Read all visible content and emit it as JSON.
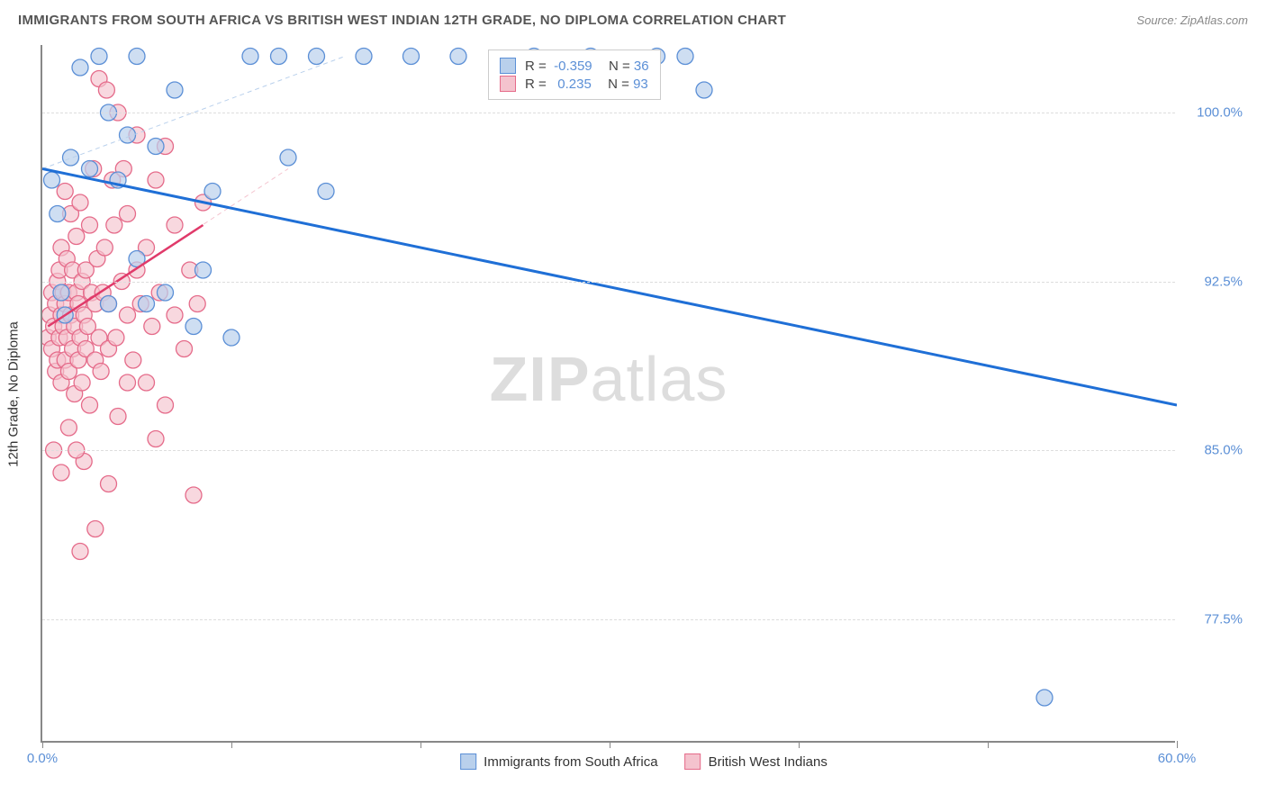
{
  "header": {
    "title": "IMMIGRANTS FROM SOUTH AFRICA VS BRITISH WEST INDIAN 12TH GRADE, NO DIPLOMA CORRELATION CHART",
    "source_label": "Source:",
    "source_name": "ZipAtlas.com"
  },
  "chart": {
    "type": "scatter",
    "ylabel": "12th Grade, No Diploma",
    "xlim": [
      0,
      60
    ],
    "ylim": [
      72,
      103
    ],
    "x_ticks": [
      0,
      10,
      20,
      30,
      40,
      50,
      60
    ],
    "x_tick_labels": {
      "0": "0.0%",
      "60": "60.0%"
    },
    "y_ticks": [
      77.5,
      85.0,
      92.5,
      100.0
    ],
    "y_tick_labels": [
      "77.5%",
      "85.0%",
      "92.5%",
      "100.0%"
    ],
    "grid_color": "#dddddd",
    "axis_color": "#888888",
    "background_color": "#ffffff",
    "tick_label_color": "#5b8fd6",
    "series": [
      {
        "name": "Immigrants from South Africa",
        "marker_fill": "#b9d0ec",
        "marker_stroke": "#5b8fd6",
        "marker_opacity": 0.7,
        "marker_radius": 9,
        "R": "-0.359",
        "N": "36",
        "trend": {
          "x1": 0,
          "y1": 97.5,
          "x2": 60,
          "y2": 87.0,
          "color": "#1f6fd6",
          "width": 3,
          "dash": "none"
        },
        "trend_dashed": {
          "x1": 0,
          "y1": 97.5,
          "x2": 16,
          "y2": 102.5,
          "color": "#b9d0ec",
          "width": 1,
          "dash": "5,4"
        },
        "points": [
          [
            0.5,
            97.0
          ],
          [
            0.8,
            95.5
          ],
          [
            1.0,
            92.0
          ],
          [
            1.2,
            91.0
          ],
          [
            1.5,
            98.0
          ],
          [
            2.0,
            102.0
          ],
          [
            2.5,
            97.5
          ],
          [
            3.0,
            102.5
          ],
          [
            3.5,
            91.5
          ],
          [
            3.5,
            100.0
          ],
          [
            4.0,
            97.0
          ],
          [
            4.5,
            99.0
          ],
          [
            5.0,
            102.5
          ],
          [
            5.0,
            93.5
          ],
          [
            5.5,
            91.5
          ],
          [
            6.0,
            98.5
          ],
          [
            6.5,
            92.0
          ],
          [
            7.0,
            101.0
          ],
          [
            8.0,
            90.5
          ],
          [
            8.5,
            93.0
          ],
          [
            9.0,
            96.5
          ],
          [
            10.0,
            90.0
          ],
          [
            11.0,
            102.5
          ],
          [
            12.5,
            102.5
          ],
          [
            13.0,
            98.0
          ],
          [
            14.5,
            102.5
          ],
          [
            15.0,
            96.5
          ],
          [
            17.0,
            102.5
          ],
          [
            19.5,
            102.5
          ],
          [
            22.0,
            102.5
          ],
          [
            26.0,
            102.5
          ],
          [
            29.0,
            102.5
          ],
          [
            32.5,
            102.5
          ],
          [
            34.0,
            102.5
          ],
          [
            35.0,
            101.0
          ],
          [
            53.0,
            74.0
          ]
        ]
      },
      {
        "name": "British West Indians",
        "marker_fill": "#f4c3ce",
        "marker_stroke": "#e56b8a",
        "marker_opacity": 0.65,
        "marker_radius": 9,
        "R": "0.235",
        "N": "93",
        "trend": {
          "x1": 0.3,
          "y1": 90.5,
          "x2": 8.5,
          "y2": 95.0,
          "color": "#e03a6a",
          "width": 2.5,
          "dash": "none"
        },
        "trend_dashed": {
          "x1": 0.3,
          "y1": 90.5,
          "x2": 13,
          "y2": 97.5,
          "color": "#f4c3ce",
          "width": 1,
          "dash": "5,4"
        },
        "points": [
          [
            0.3,
            90.0
          ],
          [
            0.4,
            91.0
          ],
          [
            0.5,
            89.5
          ],
          [
            0.5,
            92.0
          ],
          [
            0.6,
            90.5
          ],
          [
            0.7,
            88.5
          ],
          [
            0.7,
            91.5
          ],
          [
            0.8,
            92.5
          ],
          [
            0.8,
            89.0
          ],
          [
            0.9,
            90.0
          ],
          [
            0.9,
            93.0
          ],
          [
            1.0,
            91.0
          ],
          [
            1.0,
            88.0
          ],
          [
            1.0,
            94.0
          ],
          [
            1.1,
            90.5
          ],
          [
            1.1,
            92.0
          ],
          [
            1.2,
            89.0
          ],
          [
            1.2,
            91.5
          ],
          [
            1.3,
            93.5
          ],
          [
            1.3,
            90.0
          ],
          [
            1.4,
            88.5
          ],
          [
            1.4,
            92.0
          ],
          [
            1.5,
            91.0
          ],
          [
            1.5,
            95.5
          ],
          [
            1.6,
            89.5
          ],
          [
            1.6,
            93.0
          ],
          [
            1.7,
            90.5
          ],
          [
            1.7,
            87.5
          ],
          [
            1.8,
            92.0
          ],
          [
            1.8,
            94.5
          ],
          [
            1.9,
            89.0
          ],
          [
            1.9,
            91.5
          ],
          [
            2.0,
            90.0
          ],
          [
            2.0,
            96.0
          ],
          [
            2.1,
            92.5
          ],
          [
            2.1,
            88.0
          ],
          [
            2.2,
            91.0
          ],
          [
            2.2,
            84.5
          ],
          [
            2.3,
            93.0
          ],
          [
            2.3,
            89.5
          ],
          [
            2.4,
            90.5
          ],
          [
            2.5,
            95.0
          ],
          [
            2.5,
            87.0
          ],
          [
            2.6,
            92.0
          ],
          [
            2.7,
            97.5
          ],
          [
            2.8,
            91.5
          ],
          [
            2.8,
            89.0
          ],
          [
            2.9,
            93.5
          ],
          [
            3.0,
            90.0
          ],
          [
            3.0,
            101.5
          ],
          [
            3.1,
            88.5
          ],
          [
            3.2,
            92.0
          ],
          [
            3.3,
            94.0
          ],
          [
            3.4,
            101.0
          ],
          [
            3.5,
            89.5
          ],
          [
            3.5,
            91.5
          ],
          [
            3.7,
            97.0
          ],
          [
            3.8,
            95.0
          ],
          [
            3.9,
            90.0
          ],
          [
            4.0,
            100.0
          ],
          [
            4.0,
            86.5
          ],
          [
            4.2,
            92.5
          ],
          [
            4.3,
            97.5
          ],
          [
            4.5,
            91.0
          ],
          [
            4.5,
            95.5
          ],
          [
            4.8,
            89.0
          ],
          [
            5.0,
            99.0
          ],
          [
            5.0,
            93.0
          ],
          [
            5.2,
            91.5
          ],
          [
            5.5,
            88.0
          ],
          [
            5.5,
            94.0
          ],
          [
            5.8,
            90.5
          ],
          [
            6.0,
            97.0
          ],
          [
            6.0,
            85.5
          ],
          [
            6.2,
            92.0
          ],
          [
            6.5,
            98.5
          ],
          [
            6.5,
            87.0
          ],
          [
            7.0,
            91.0
          ],
          [
            7.0,
            95.0
          ],
          [
            7.5,
            89.5
          ],
          [
            7.8,
            93.0
          ],
          [
            8.0,
            83.0
          ],
          [
            8.2,
            91.5
          ],
          [
            8.5,
            96.0
          ],
          [
            0.6,
            85.0
          ],
          [
            1.0,
            84.0
          ],
          [
            1.4,
            86.0
          ],
          [
            2.0,
            80.5
          ],
          [
            2.8,
            81.5
          ],
          [
            3.5,
            83.5
          ],
          [
            1.2,
            96.5
          ],
          [
            4.5,
            88.0
          ],
          [
            1.8,
            85.0
          ]
        ]
      }
    ],
    "watermark": {
      "text_bold": "ZIP",
      "text_rest": "atlas",
      "color": "#dddddd"
    }
  },
  "bottom_legend": {
    "items": [
      {
        "label": "Immigrants from South Africa",
        "fill": "#b9d0ec",
        "stroke": "#5b8fd6"
      },
      {
        "label": "British West Indians",
        "fill": "#f4c3ce",
        "stroke": "#e56b8a"
      }
    ]
  }
}
